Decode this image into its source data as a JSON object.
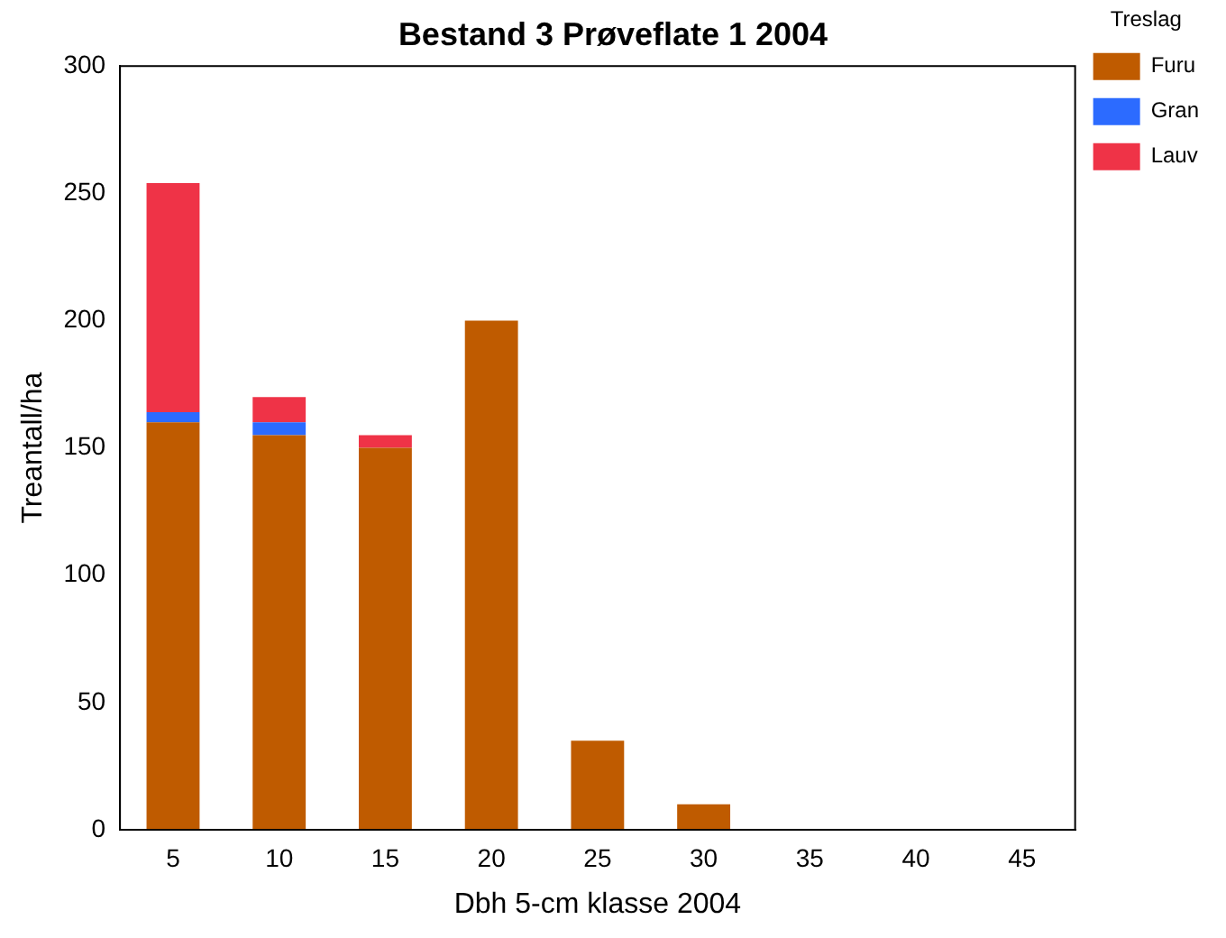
{
  "chart_data": {
    "type": "bar",
    "title": "Bestand 3 Prøveflate 1 2004",
    "xlabel": "Dbh 5-cm klasse 2004",
    "ylabel": "Treantall/ha",
    "legend_title": "Treslag",
    "categories": [
      "5",
      "10",
      "15",
      "20",
      "25",
      "30",
      "35",
      "40",
      "45"
    ],
    "stacked": true,
    "series": [
      {
        "name": "Furu",
        "color": "#bf5b00",
        "values": [
          160,
          155,
          150,
          200,
          35,
          10,
          0,
          0,
          0
        ]
      },
      {
        "name": "Gran",
        "color": "#2c6bff",
        "values": [
          4,
          5,
          0,
          0,
          0,
          0,
          0,
          0,
          0
        ]
      },
      {
        "name": "Lauv",
        "color": "#ef3347",
        "values": [
          90,
          10,
          5,
          0,
          0,
          0,
          0,
          0,
          0
        ]
      }
    ],
    "ylim": [
      0,
      300
    ],
    "yticks": [
      0,
      50,
      100,
      150,
      200,
      250,
      300
    ],
    "grid": false,
    "legend": "top right"
  }
}
